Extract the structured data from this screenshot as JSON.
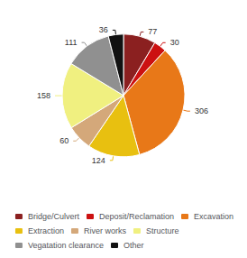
{
  "chart_data": {
    "type": "pie",
    "categories": [
      "Bridge/Culvert",
      "Deposit/Reclamation",
      "Excavation",
      "Extraction",
      "River works",
      "Structure",
      "Vegatation clearance",
      "Other"
    ],
    "values": [
      77,
      30,
      306,
      124,
      60,
      158,
      111,
      36
    ],
    "colors": [
      "#8B2020",
      "#CC1111",
      "#E87818",
      "#E8C010",
      "#D4A87A",
      "#F0F080",
      "#909090",
      "#111111"
    ],
    "data_labels": true,
    "legend": "bottom"
  }
}
